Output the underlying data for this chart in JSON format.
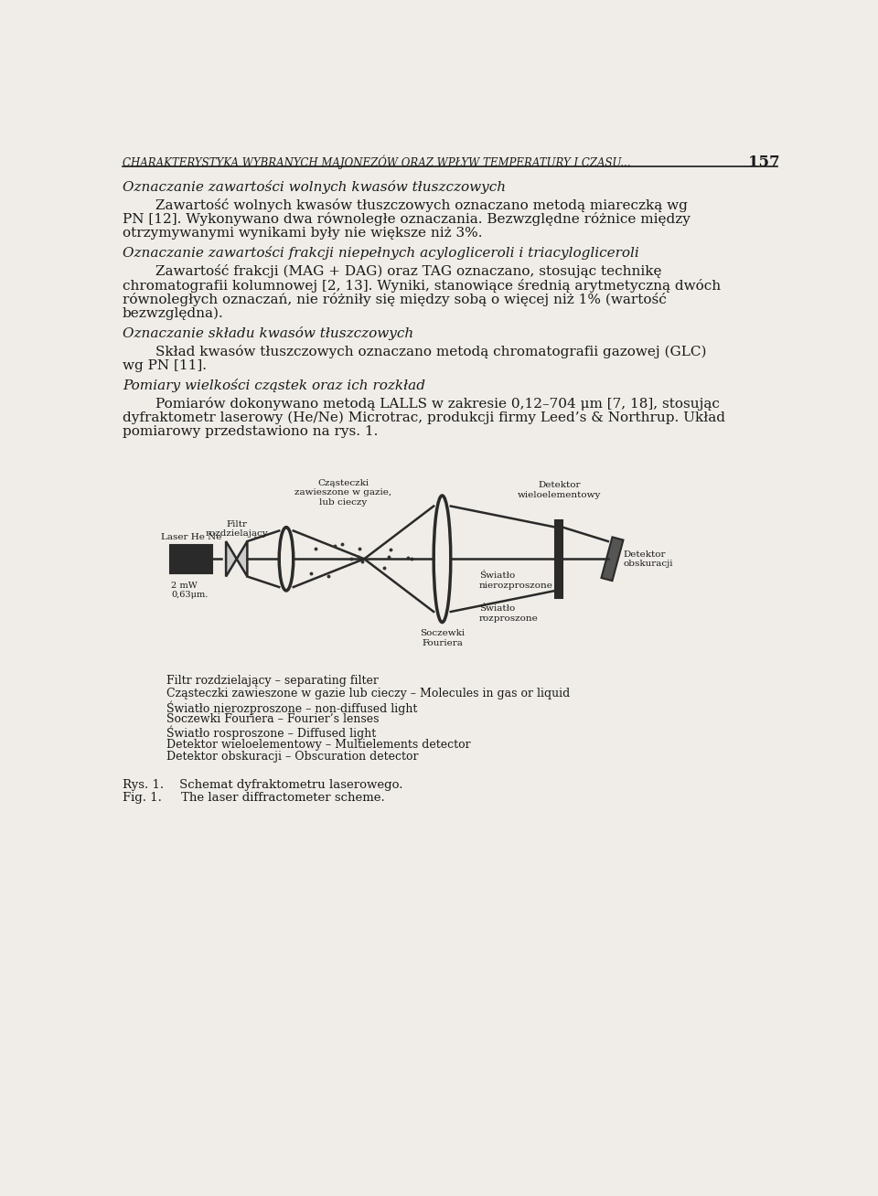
{
  "bg_color": "#f0ede8",
  "header_text": "CHARAKTERYSTYKA WYBRANYCH MAJONEZÓW ORAZ WPŁYW TEMPERATURY I CZASU...",
  "page_number": "157",
  "para1_lines": [
    "Zawartość wolnych kwasów tłuszczowych oznaczano metodą miareczką wg",
    "PN [12]. Wykonywano dwa równoległe oznaczania. Bezwzględne różnice między",
    "otrzymywanymi wynikami były nie większe niż 3%."
  ],
  "para2_lines": [
    "Zawartość frakcji (MAG + DAG) oraz TAG oznaczano, stosując technikę",
    "chromatografii kolumnowej [2, 13]. Wyniki, stanowiące średnią arytmetyczną dwóch",
    "równoległych oznaczań, nie różniły się między sobą o więcej niż 1% (wartość",
    "bezwzględna)."
  ],
  "para3_lines": [
    "Skład kwasów tłuszczowych oznaczano metodą chromatografii gazowej (GLC)",
    "wg PN [11]."
  ],
  "para4_lines": [
    "Pomiarów dokonywano metodą LALLS w zakresie 0,12–704 μm [7, 18], stosując",
    "dyfraktometr laserowy (He/Ne) Microtrac, produkcji firmy Leed’s & Northrup. Układ",
    "pomiarowy przedstawiono na rys. 1."
  ],
  "legend_lines": [
    "Filtr rozdzielający – separating filter",
    "Cząsteczki zawieszone w gazie lub cieczy – Molecules in gas or liquid",
    "Światło nierozproszone – non-diffused light",
    "Soczewki Fouriera – Fourier’s lenses",
    "Światło rosproszone – Diffused light",
    "Detektor wieloelementowy – Multielements detector",
    "Detektor obskuracji – Obscuration detector"
  ],
  "caption_rys": "Rys. 1.    Schemat dyfraktometru laserowego.",
  "caption_fig": "Fig. 1.     The laser diffractometer scheme."
}
